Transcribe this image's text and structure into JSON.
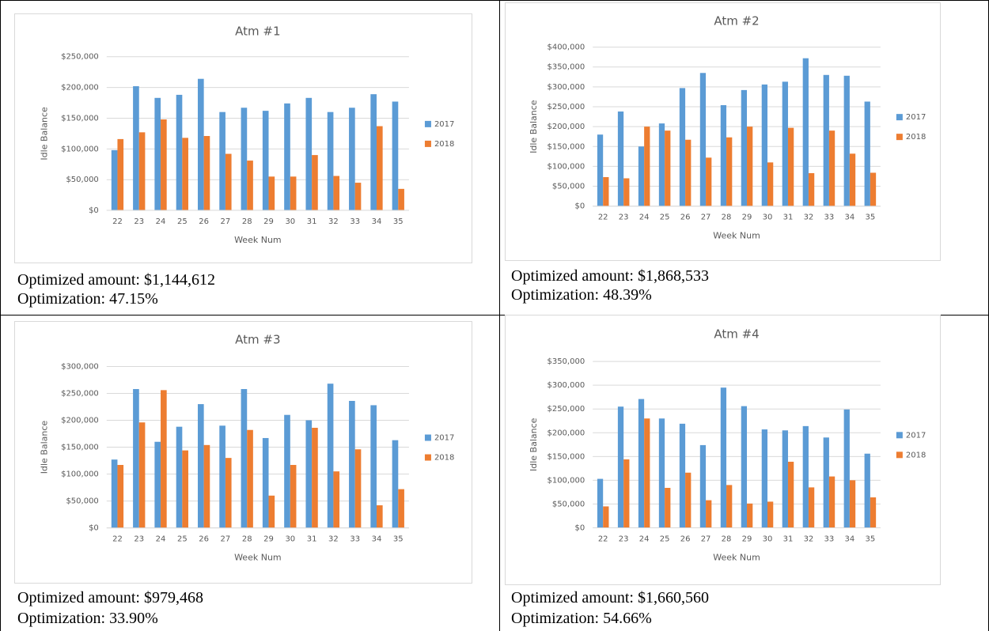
{
  "chart_data": [
    {
      "type": "bar",
      "title": "Atm #1",
      "xlabel": "Week Num",
      "ylabel": "Idle Balance",
      "categories": [
        "22",
        "23",
        "24",
        "25",
        "26",
        "27",
        "28",
        "29",
        "30",
        "31",
        "32",
        "33",
        "34",
        "35"
      ],
      "series": [
        {
          "name": "2017",
          "color": "#5b9bd5",
          "values": [
            98000,
            202000,
            183000,
            188000,
            214000,
            160000,
            167000,
            162000,
            174000,
            183000,
            160000,
            167000,
            189000,
            177000
          ]
        },
        {
          "name": "2018",
          "color": "#ed7d31",
          "values": [
            116000,
            127000,
            148000,
            118000,
            121000,
            92000,
            81000,
            55000,
            55000,
            90000,
            56000,
            45000,
            137000,
            35000
          ]
        }
      ],
      "ylim": [
        0,
        250000
      ],
      "yticks": [
        {
          "value": 0,
          "label": "$0"
        },
        {
          "value": 50000,
          "label": "$50,000"
        },
        {
          "value": 100000,
          "label": "$100,000"
        },
        {
          "value": 150000,
          "label": "$150,000"
        },
        {
          "value": 200000,
          "label": "$200,000"
        },
        {
          "value": 250000,
          "label": "$250,000"
        }
      ],
      "grid": true,
      "legend": "right"
    },
    {
      "type": "bar",
      "title": "Atm #2",
      "xlabel": "Week Num",
      "ylabel": "Idle Balance",
      "categories": [
        "22",
        "23",
        "24",
        "25",
        "26",
        "27",
        "28",
        "29",
        "30",
        "31",
        "32",
        "33",
        "34",
        "35"
      ],
      "series": [
        {
          "name": "2017",
          "color": "#5b9bd5",
          "values": [
            180000,
            238000,
            150000,
            208000,
            297000,
            335000,
            254000,
            292000,
            306000,
            313000,
            372000,
            330000,
            328000,
            263000
          ]
        },
        {
          "name": "2018",
          "color": "#ed7d31",
          "values": [
            73000,
            70000,
            200000,
            190000,
            167000,
            122000,
            173000,
            200000,
            110000,
            197000,
            83000,
            190000,
            132000,
            84000
          ]
        }
      ],
      "ylim": [
        0,
        400000
      ],
      "yticks": [
        {
          "value": 0,
          "label": "$0"
        },
        {
          "value": 50000,
          "label": "$50,000"
        },
        {
          "value": 100000,
          "label": "$100,000"
        },
        {
          "value": 150000,
          "label": "$150,000"
        },
        {
          "value": 200000,
          "label": "$200,000"
        },
        {
          "value": 250000,
          "label": "$250,000"
        },
        {
          "value": 300000,
          "label": "$300,000"
        },
        {
          "value": 350000,
          "label": "$350,000"
        },
        {
          "value": 400000,
          "label": "$400,000"
        }
      ],
      "grid": true,
      "legend": "right"
    },
    {
      "type": "bar",
      "title": "Atm #3",
      "xlabel": "Week Num",
      "ylabel": "Idle Balance",
      "categories": [
        "22",
        "23",
        "24",
        "25",
        "26",
        "27",
        "28",
        "29",
        "30",
        "31",
        "32",
        "33",
        "34",
        "35"
      ],
      "series": [
        {
          "name": "2017",
          "color": "#5b9bd5",
          "values": [
            127000,
            258000,
            160000,
            188000,
            230000,
            190000,
            258000,
            167000,
            210000,
            200000,
            268000,
            236000,
            228000,
            163000
          ]
        },
        {
          "name": "2018",
          "color": "#ed7d31",
          "values": [
            117000,
            196000,
            256000,
            144000,
            154000,
            130000,
            182000,
            60000,
            117000,
            186000,
            105000,
            146000,
            42000,
            72000
          ]
        }
      ],
      "ylim": [
        0,
        300000
      ],
      "yticks": [
        {
          "value": 0,
          "label": "$0"
        },
        {
          "value": 50000,
          "label": "$50,000"
        },
        {
          "value": 100000,
          "label": "$100,000"
        },
        {
          "value": 150000,
          "label": "$150,000"
        },
        {
          "value": 200000,
          "label": "$200,000"
        },
        {
          "value": 250000,
          "label": "$250,000"
        },
        {
          "value": 300000,
          "label": "$300,000"
        }
      ],
      "grid": true,
      "legend": "right"
    },
    {
      "type": "bar",
      "title": "Atm #4",
      "xlabel": "Week Num",
      "ylabel": "Idle Balance",
      "categories": [
        "22",
        "23",
        "24",
        "25",
        "26",
        "27",
        "28",
        "29",
        "30",
        "31",
        "32",
        "33",
        "34",
        "35"
      ],
      "series": [
        {
          "name": "2017",
          "color": "#5b9bd5",
          "values": [
            103000,
            255000,
            271000,
            230000,
            219000,
            174000,
            295000,
            256000,
            207000,
            205000,
            214000,
            190000,
            249000,
            156000
          ]
        },
        {
          "name": "2018",
          "color": "#ed7d31",
          "values": [
            45000,
            144000,
            230000,
            84000,
            116000,
            58000,
            90000,
            51000,
            55000,
            139000,
            85000,
            108000,
            100000,
            64000
          ]
        }
      ],
      "ylim": [
        0,
        350000
      ],
      "yticks": [
        {
          "value": 0,
          "label": "$0"
        },
        {
          "value": 50000,
          "label": "$50,000"
        },
        {
          "value": 100000,
          "label": "$100,000"
        },
        {
          "value": 150000,
          "label": "$150,000"
        },
        {
          "value": 200000,
          "label": "$200,000"
        },
        {
          "value": 250000,
          "label": "$250,000"
        },
        {
          "value": 300000,
          "label": "$300,000"
        },
        {
          "value": 350000,
          "label": "$350,000"
        }
      ],
      "grid": true,
      "legend": "right"
    }
  ],
  "captions": [
    [
      "Optimized amount: $1,144,612",
      "Optimization: 47.15%"
    ],
    [
      "Optimized amount: $1,868,533",
      "Optimization: 48.39%"
    ],
    [
      "Optimized amount: $979,468",
      "Optimization: 33.90%"
    ],
    [
      "Optimized amount: $1,660,560",
      "Optimization: 54.66%"
    ]
  ]
}
